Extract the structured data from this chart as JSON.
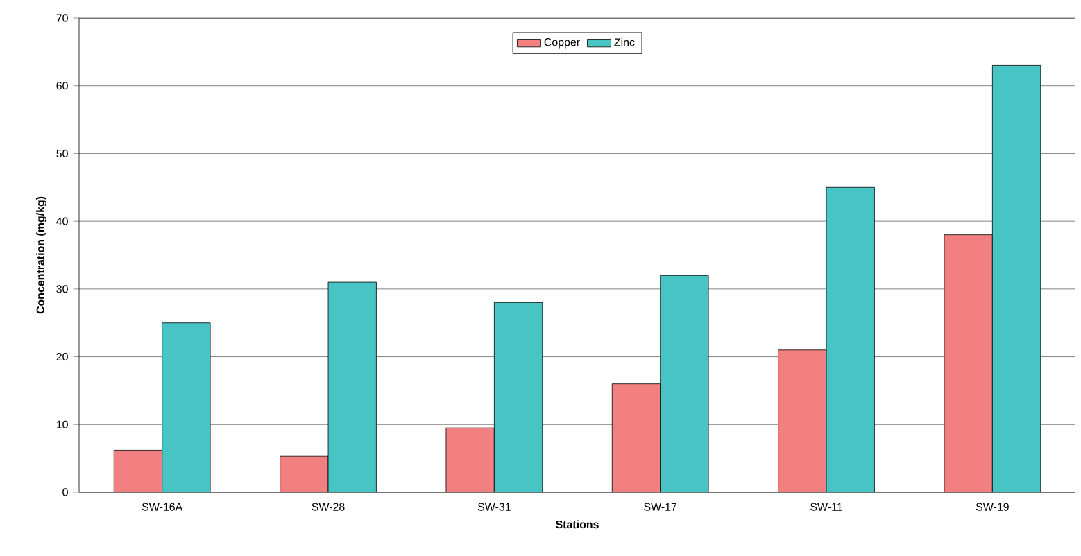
{
  "chart_data": {
    "type": "bar",
    "xlabel": "Stations",
    "ylabel": "Concentration (mg/kg)",
    "categories": [
      "SW-16A",
      "SW-28",
      "SW-31",
      "SW-17",
      "SW-11",
      "SW-19"
    ],
    "series": [
      {
        "name": "Copper",
        "color": "#f28080",
        "values": [
          6.2,
          5.3,
          9.5,
          16,
          21,
          38
        ]
      },
      {
        "name": "Zinc",
        "color": "#48c4c4",
        "values": [
          25,
          31,
          28,
          32,
          45,
          63
        ]
      }
    ],
    "ylim": [
      0,
      70
    ],
    "yticks": [
      0,
      10,
      20,
      30,
      40,
      50,
      60,
      70
    ],
    "grid": "y",
    "legend": "top"
  }
}
